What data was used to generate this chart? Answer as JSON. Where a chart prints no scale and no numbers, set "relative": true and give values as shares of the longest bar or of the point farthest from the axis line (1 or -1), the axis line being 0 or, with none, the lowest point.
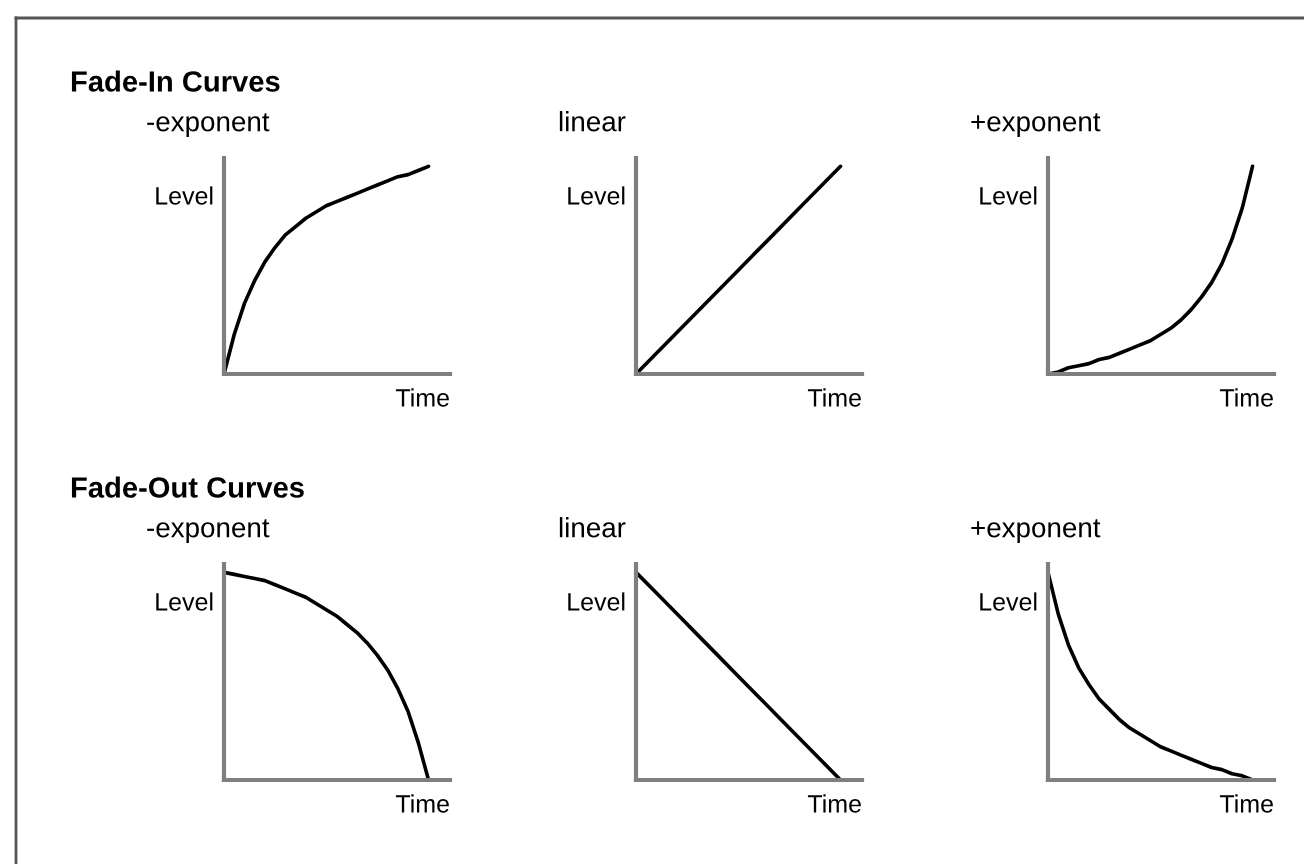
{
  "chart_data": [
    {
      "type": "line",
      "title": "-exponent",
      "xlabel": "Time",
      "ylabel": "Level",
      "annotations": [
        "Fade-In Curves"
      ],
      "relative": true,
      "tick_labels": false,
      "categories": [
        null,
        null,
        null,
        null,
        null,
        null,
        null,
        null,
        null,
        null,
        null,
        null,
        null,
        null,
        null,
        null,
        null,
        null,
        null,
        null,
        null
      ],
      "series": [
        {
          "color": "#000000",
          "values": [
            0,
            0.19,
            0.34,
            0.45,
            0.54,
            0.61,
            0.67,
            0.71,
            0.75,
            0.78,
            0.81,
            0.83,
            0.85,
            0.87,
            0.89,
            0.91,
            0.93,
            0.95,
            0.96,
            0.98,
            1.0
          ]
        }
      ]
    },
    {
      "type": "line",
      "title": "linear",
      "xlabel": "Time",
      "ylabel": "Level",
      "relative": true,
      "tick_labels": false,
      "categories": [
        null,
        null,
        null,
        null,
        null,
        null,
        null,
        null,
        null,
        null,
        null
      ],
      "series": [
        {
          "color": "#000000",
          "values": [
            0,
            0.1,
            0.2,
            0.3,
            0.4,
            0.5,
            0.6,
            0.7,
            0.8,
            0.9,
            1.0
          ]
        }
      ]
    },
    {
      "type": "line",
      "title": "+exponent",
      "xlabel": "Time",
      "ylabel": "Level",
      "relative": true,
      "tick_labels": false,
      "categories": [
        null,
        null,
        null,
        null,
        null,
        null,
        null,
        null,
        null,
        null,
        null,
        null,
        null,
        null,
        null,
        null,
        null,
        null,
        null,
        null,
        null
      ],
      "series": [
        {
          "color": "#000000",
          "values": [
            0,
            0.01,
            0.03,
            0.04,
            0.05,
            0.07,
            0.08,
            0.1,
            0.12,
            0.14,
            0.16,
            0.19,
            0.22,
            0.26,
            0.31,
            0.37,
            0.44,
            0.53,
            0.65,
            0.8,
            1.0
          ]
        }
      ]
    },
    {
      "type": "line",
      "title": "-exponent",
      "xlabel": "Time",
      "ylabel": "Level",
      "annotations": [
        "Fade-Out Curves"
      ],
      "relative": true,
      "tick_labels": false,
      "categories": [
        null,
        null,
        null,
        null,
        null,
        null,
        null,
        null,
        null,
        null,
        null,
        null,
        null,
        null,
        null,
        null,
        null,
        null,
        null,
        null,
        null
      ],
      "series": [
        {
          "color": "#000000",
          "values": [
            1.0,
            0.99,
            0.98,
            0.97,
            0.96,
            0.94,
            0.92,
            0.9,
            0.88,
            0.85,
            0.82,
            0.79,
            0.75,
            0.71,
            0.66,
            0.6,
            0.53,
            0.44,
            0.33,
            0.18,
            0
          ]
        }
      ]
    },
    {
      "type": "line",
      "title": "linear",
      "xlabel": "Time",
      "ylabel": "Level",
      "relative": true,
      "tick_labels": false,
      "categories": [
        null,
        null,
        null,
        null,
        null,
        null,
        null,
        null,
        null,
        null,
        null
      ],
      "series": [
        {
          "color": "#000000",
          "values": [
            1.0,
            0.9,
            0.8,
            0.7,
            0.6,
            0.5,
            0.4,
            0.3,
            0.2,
            0.1,
            0
          ]
        }
      ]
    },
    {
      "type": "line",
      "title": "+exponent",
      "xlabel": "Time",
      "ylabel": "Level",
      "relative": true,
      "tick_labels": false,
      "categories": [
        null,
        null,
        null,
        null,
        null,
        null,
        null,
        null,
        null,
        null,
        null,
        null,
        null,
        null,
        null,
        null,
        null,
        null,
        null,
        null,
        null
      ],
      "series": [
        {
          "color": "#000000",
          "values": [
            1.0,
            0.8,
            0.65,
            0.54,
            0.46,
            0.39,
            0.34,
            0.29,
            0.25,
            0.22,
            0.19,
            0.16,
            0.14,
            0.12,
            0.1,
            0.08,
            0.06,
            0.05,
            0.03,
            0.02,
            0
          ]
        }
      ]
    }
  ]
}
